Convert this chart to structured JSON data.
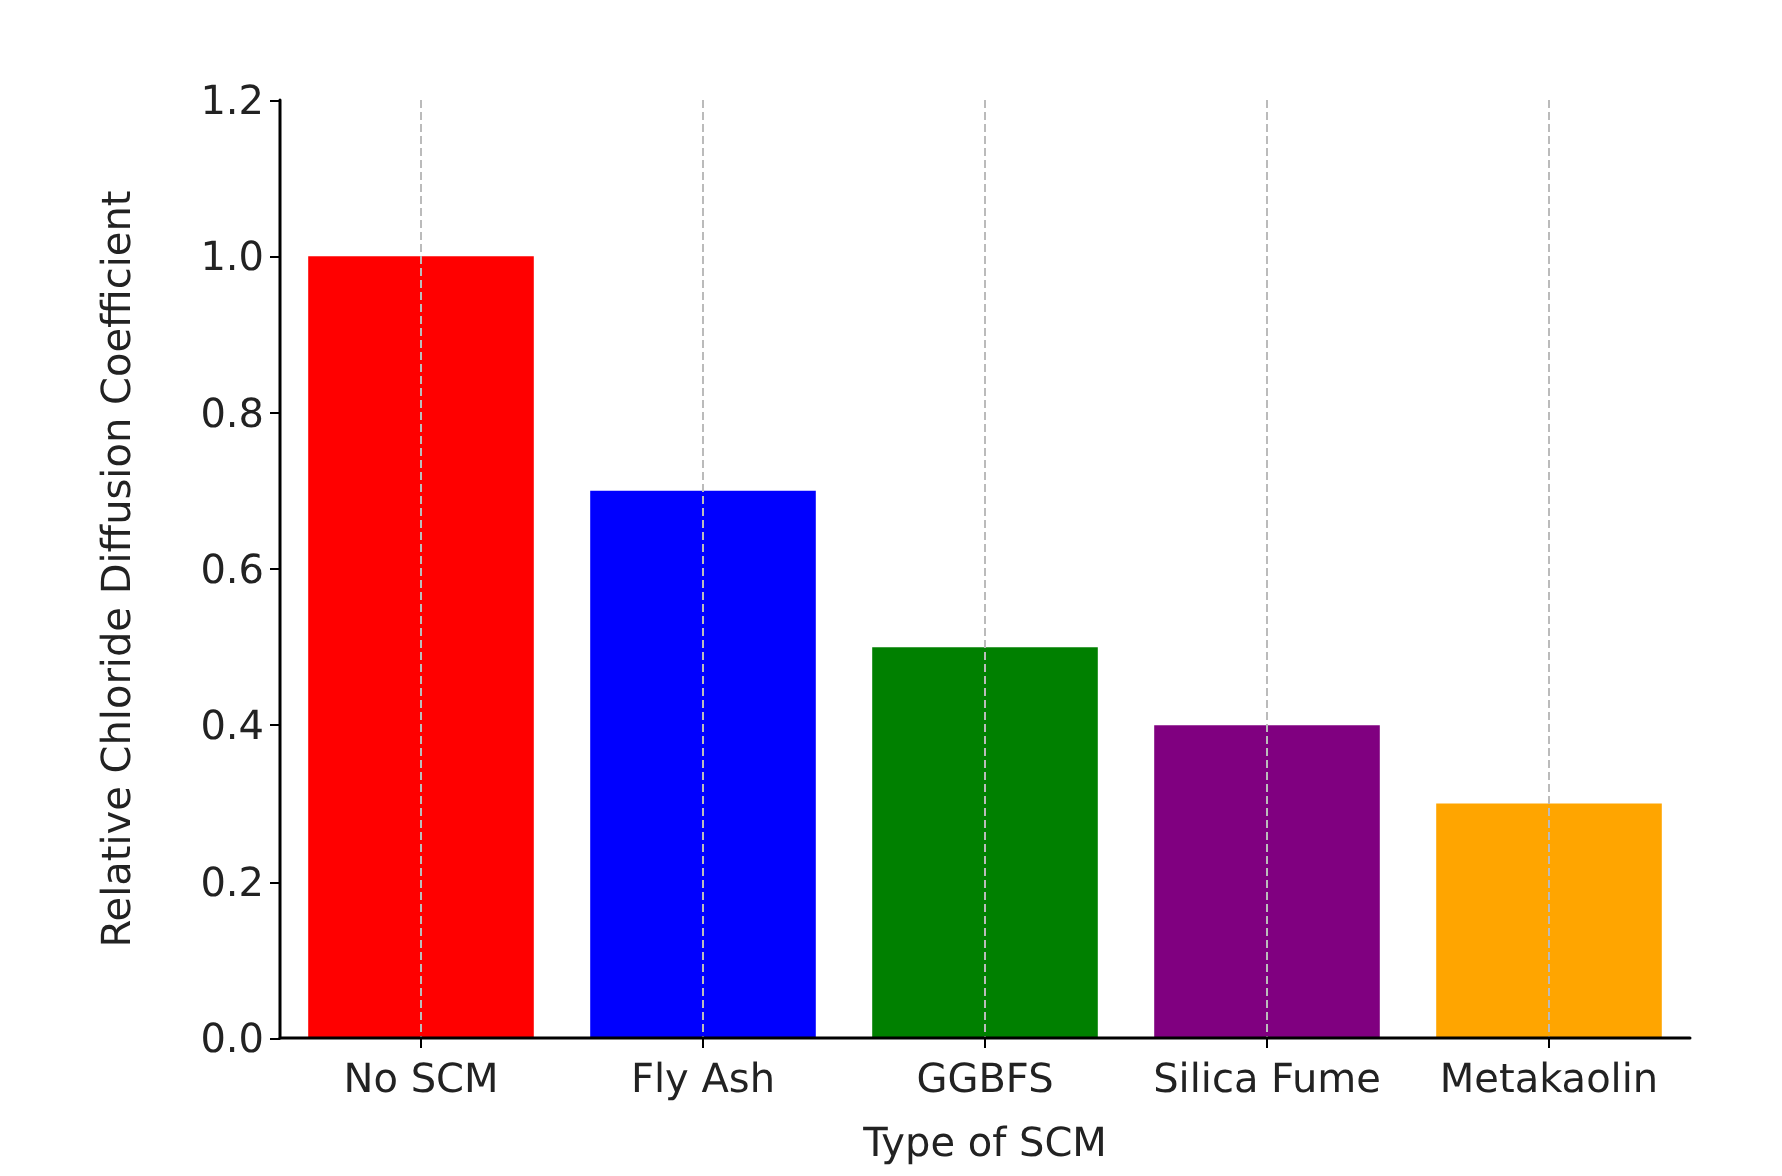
{
  "chart_data": {
    "type": "bar",
    "xlabel": "Type of SCM",
    "ylabel": "Relative Chloride Diffusion Coefficient",
    "categories": [
      "No SCM",
      "Fly Ash",
      "GGBFS",
      "Silica Fume",
      "Metakaolin"
    ],
    "values": [
      1.0,
      0.7,
      0.5,
      0.4,
      0.3
    ],
    "colors": [
      "#ff0000",
      "#0000ff",
      "#008000",
      "#800080",
      "#ffa500"
    ],
    "ylim": [
      0,
      1.2
    ],
    "yticks": [
      {
        "value": 0,
        "label": "0.0"
      },
      0.2,
      0.4,
      0.6,
      0.8,
      {
        "value": 1,
        "label": "1.0"
      },
      1.2
    ],
    "grid": "x"
  }
}
